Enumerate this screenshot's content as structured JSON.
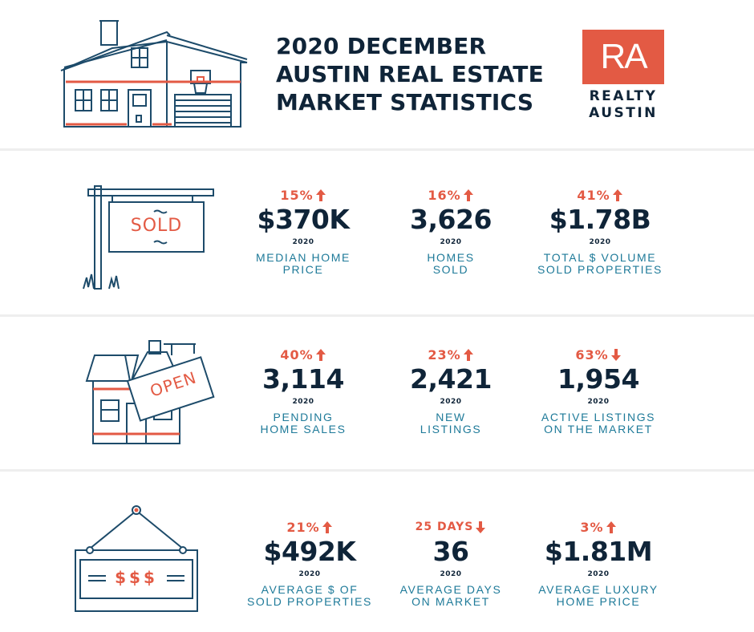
{
  "header": {
    "title_lines": [
      "2020 DECEMBER",
      "AUSTIN REAL ESTATE",
      "MARKET STATISTICS"
    ],
    "logo_mark": "RA",
    "logo_text_lines": [
      "REALTY",
      "AUSTIN"
    ]
  },
  "colors": {
    "accent": "#e35a44",
    "navy": "#0f2438",
    "teal": "#1e7a99"
  },
  "icons": {
    "section1": "sold-sign-icon",
    "section2": "open-house-icon",
    "section3": "hanging-price-sign-icon"
  },
  "sections": [
    {
      "sign_text": "SOLD",
      "stats": [
        {
          "change": "15%",
          "direction": "up",
          "value": "$370K",
          "year": "2020",
          "label_lines": [
            "MEDIAN HOME",
            "PRICE"
          ]
        },
        {
          "change": "16%",
          "direction": "up",
          "value": "3,626",
          "year": "2020",
          "label_lines": [
            "HOMES",
            "SOLD"
          ]
        },
        {
          "change": "41%",
          "direction": "up",
          "value": "$1.78B",
          "year": "2020",
          "label_lines": [
            "TOTAL $ VOLUME",
            "SOLD PROPERTIES"
          ]
        }
      ]
    },
    {
      "sign_text": "OPEN",
      "stats": [
        {
          "change": "40%",
          "direction": "up",
          "value": "3,114",
          "year": "2020",
          "label_lines": [
            "PENDING",
            "HOME SALES"
          ]
        },
        {
          "change": "23%",
          "direction": "up",
          "value": "2,421",
          "year": "2020",
          "label_lines": [
            "NEW",
            "LISTINGS"
          ]
        },
        {
          "change": "63%",
          "direction": "down",
          "value": "1,954",
          "year": "2020",
          "label_lines": [
            "ACTIVE LISTINGS",
            "ON THE MARKET"
          ]
        }
      ]
    },
    {
      "sign_text": "$$$",
      "stats": [
        {
          "change": "21%",
          "direction": "up",
          "value": "$492K",
          "year": "2020",
          "label_lines": [
            "AVERAGE $ OF",
            "SOLD PROPERTIES"
          ]
        },
        {
          "change": "25 DAYS",
          "direction": "down",
          "value": "36",
          "year": "2020",
          "label_lines": [
            "AVERAGE DAYS",
            "ON MARKET"
          ]
        },
        {
          "change": "3%",
          "direction": "up",
          "value": "$1.81M",
          "year": "2020",
          "label_lines": [
            "AVERAGE LUXURY",
            "HOME PRICE"
          ]
        }
      ]
    }
  ]
}
